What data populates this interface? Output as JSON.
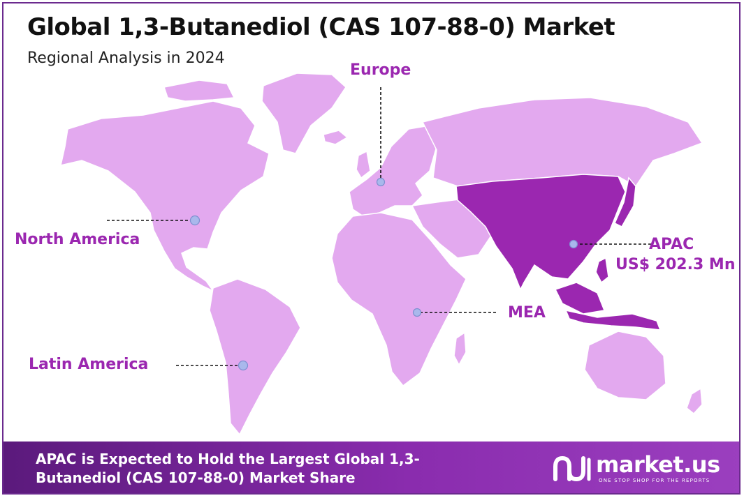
{
  "title": "Global 1,3-Butanediol (CAS 107-88-0) Market",
  "subtitle": "Regional Analysis in 2024",
  "regions": {
    "europe": "Europe",
    "north_america": "North America",
    "latin_america": "Latin America",
    "mea": "MEA",
    "apac": "APAC",
    "apac_value": "US$ 202.3 Mn"
  },
  "highlighted_region": "APAC",
  "colors": {
    "land": "#e3a9ef",
    "highlight": "#9b27b0",
    "label": "#9b27b0",
    "marker": "#a9b8ec",
    "footer": "#7a259f"
  },
  "footer": {
    "headline": "APAC is Expected to Hold the Largest Global 1,3-Butanediol (CAS 107-88-0) Market Share"
  },
  "logo": {
    "name": "market.us",
    "tagline": "ONE STOP SHOP FOR THE REPORTS",
    "icon": "market-us-logo-icon"
  }
}
